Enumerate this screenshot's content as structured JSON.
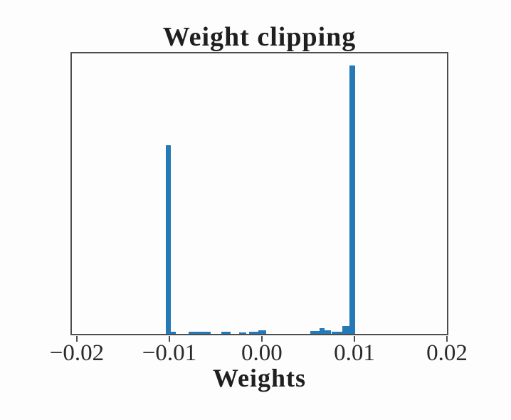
{
  "chart_data": {
    "type": "bar",
    "subtype": "histogram",
    "title": "Weight clipping",
    "xlabel": "Weights",
    "ylabel": "",
    "grid": false,
    "legend": false,
    "xlim": [
      -0.02053,
      0.02
    ],
    "x_ticks": {
      "values": [
        -0.02,
        -0.01,
        0,
        0.01,
        0.02
      ],
      "labels": [
        "−0.02",
        "−0.01",
        "0.00",
        "0.01",
        "0.02"
      ]
    },
    "y_ticks": [],
    "y_unit_note": "no y-axis ticks shown; bar heights given as fraction of plot height",
    "bars": [
      {
        "x": -0.0104,
        "w": 0.00055,
        "h": 0.672
      },
      {
        "x": -0.00985,
        "w": 0.00055,
        "h": 0.008
      },
      {
        "x": -0.00795,
        "w": 0.00245,
        "h": 0.008
      },
      {
        "x": -0.00435,
        "w": 0.001,
        "h": 0.008
      },
      {
        "x": -0.00245,
        "w": 0.00075,
        "h": 0.005
      },
      {
        "x": -0.0014,
        "w": 0.001,
        "h": 0.008
      },
      {
        "x": -0.0004,
        "w": 0.0009,
        "h": 0.013
      },
      {
        "x": 0.00525,
        "w": 0.001,
        "h": 0.01
      },
      {
        "x": 0.00625,
        "w": 0.00055,
        "h": 0.02
      },
      {
        "x": 0.0068,
        "w": 0.0007,
        "h": 0.013
      },
      {
        "x": 0.0075,
        "w": 0.0012,
        "h": 0.008
      },
      {
        "x": 0.0087,
        "w": 0.00075,
        "h": 0.028
      },
      {
        "x": 0.00945,
        "w": 0.00062,
        "h": 0.957
      }
    ],
    "colors": {
      "bar": "#2579b6",
      "spine": "#4d4d4d",
      "text": "#1f1f1f",
      "background": "#fdfdfd"
    }
  }
}
